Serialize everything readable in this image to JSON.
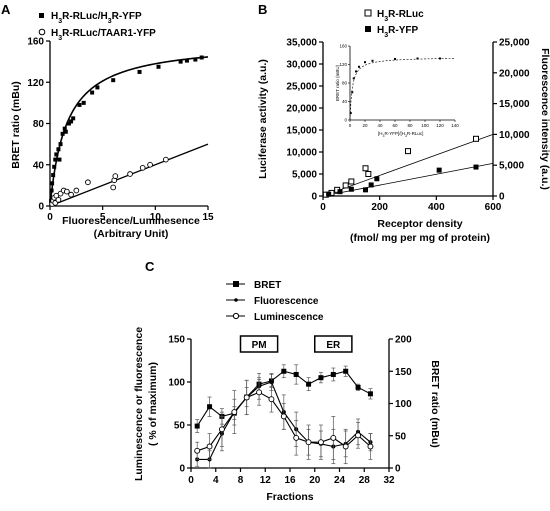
{
  "chart_data": [
    {
      "panel": "A",
      "type": "scatter",
      "xlabel": "Fluorescence/Luminesence",
      "xlabel_sub": "(Arbitrary Unit)",
      "ylabel": "BRET ratio (mBu)",
      "xlim": [
        0,
        15
      ],
      "ylim": [
        0,
        160
      ],
      "xticks": [
        0,
        5,
        10,
        15
      ],
      "yticks": [
        0,
        40,
        80,
        120,
        160
      ],
      "legend_position": "top",
      "series": [
        {
          "name": "H3R-RLuc/H3R-YFP",
          "marker": "filled-square",
          "points": [
            [
              0.1,
              5
            ],
            [
              0.15,
              15
            ],
            [
              0.2,
              22
            ],
            [
              0.3,
              30
            ],
            [
              0.4,
              38
            ],
            [
              0.5,
              45
            ],
            [
              0.6,
              50
            ],
            [
              0.8,
              55
            ],
            [
              0.9,
              45
            ],
            [
              1.0,
              60
            ],
            [
              1.2,
              70
            ],
            [
              1.4,
              75
            ],
            [
              1.5,
              72
            ],
            [
              1.8,
              80
            ],
            [
              2.0,
              82
            ],
            [
              2.2,
              85
            ],
            [
              2.8,
              98
            ],
            [
              3.2,
              100
            ],
            [
              4.0,
              110
            ],
            [
              4.5,
              115
            ],
            [
              6.0,
              122
            ],
            [
              8.5,
              130
            ],
            [
              10.3,
              135
            ],
            [
              12.4,
              140
            ],
            [
              13.0,
              141
            ],
            [
              13.8,
              142
            ],
            [
              14.4,
              144
            ]
          ],
          "fit": {
            "type": "hyperbolic",
            "bmax": 160,
            "k50": 1.6
          }
        },
        {
          "name": "H3R-RLuc/TAAR1-YFP",
          "marker": "open-circle",
          "points": [
            [
              0.2,
              2
            ],
            [
              0.3,
              5
            ],
            [
              0.4,
              8
            ],
            [
              0.5,
              3
            ],
            [
              0.6,
              10
            ],
            [
              0.8,
              6
            ],
            [
              1.0,
              12
            ],
            [
              1.3,
              15
            ],
            [
              1.6,
              14
            ],
            [
              2.0,
              11
            ],
            [
              2.5,
              15
            ],
            [
              3.6,
              23
            ],
            [
              6.0,
              18
            ],
            [
              6.1,
              25
            ],
            [
              6.2,
              29
            ],
            [
              7.6,
              31
            ],
            [
              8.8,
              37
            ],
            [
              9.5,
              40
            ],
            [
              11.0,
              45
            ]
          ],
          "fit": {
            "type": "linear",
            "slope": 4,
            "intercept": 0
          }
        }
      ]
    },
    {
      "panel": "B",
      "type": "scatter",
      "xlabel": "Receptor density",
      "xlabel_sub": "(fmol/ mg per mg of protein)",
      "ylabel": "Luciferase activity (a.u.)",
      "ylabel_right": "Fluorescence intensity (a.u.)",
      "xlim": [
        0,
        600
      ],
      "xticks": [
        0,
        200,
        400,
        600
      ],
      "ylim_left": [
        0,
        35000
      ],
      "yticks_left": [
        "0",
        "5,000",
        "10,000",
        "15,000",
        "20,000",
        "25,000",
        "30,000",
        "35,000"
      ],
      "ylim_right": [
        0,
        25000
      ],
      "yticks_right": [
        "0",
        "5,000",
        "10,000",
        "15,000",
        "20,000",
        "25,000"
      ],
      "legend_position": "top",
      "series": [
        {
          "name": "H3R-RLuc",
          "marker": "open-square",
          "axis": "left",
          "points": [
            [
              10,
              300
            ],
            [
              30,
              700
            ],
            [
              50,
              1400
            ],
            [
              80,
              2400
            ],
            [
              100,
              3300
            ],
            [
              150,
              6300
            ],
            [
              160,
              5000
            ],
            [
              300,
              10200
            ],
            [
              540,
              13000
            ]
          ],
          "fit": {
            "x": [
              0,
              600
            ],
            "y": [
              0,
              14000
            ]
          }
        },
        {
          "name": "H3R-YFP",
          "marker": "filled-square",
          "axis": "right",
          "points": [
            [
              20,
              300
            ],
            [
              60,
              700
            ],
            [
              100,
              1100
            ],
            [
              150,
              1000
            ],
            [
              170,
              1800
            ],
            [
              190,
              2800
            ],
            [
              410,
              4200
            ],
            [
              540,
              4700
            ]
          ],
          "fit": {
            "x": [
              0,
              600
            ],
            "y": [
              0,
              5300
            ]
          }
        }
      ],
      "inset": {
        "xlabel": "[H3R-YFP]/[H3R-RLuc]",
        "ylabel": "BRET ratio (mBU)",
        "xlim": [
          0,
          140
        ],
        "ylim": [
          0,
          160
        ],
        "xticks": [
          0,
          20,
          40,
          60,
          80,
          100,
          120,
          140
        ],
        "yticks": [
          0,
          40,
          80,
          120,
          160
        ],
        "points": [
          [
            1,
            15
          ],
          [
            3,
            60
          ],
          [
            5,
            90
          ],
          [
            8,
            105
          ],
          [
            12,
            115
          ],
          [
            20,
            125
          ],
          [
            30,
            128
          ],
          [
            60,
            132
          ],
          [
            90,
            133
          ],
          [
            120,
            133
          ]
        ],
        "fit": {
          "type": "hyperbolic",
          "bmax": 136,
          "k50": 3
        }
      }
    },
    {
      "panel": "C",
      "type": "line",
      "xlabel": "Fractions",
      "ylabel": "Luminescence or fluorescence",
      "ylabel_sub": "( % of maximum)",
      "ylabel_right": "BRET ratio (mBu)",
      "xlim": [
        0,
        32
      ],
      "xticks": [
        0,
        4,
        8,
        12,
        16,
        20,
        24,
        28,
        32
      ],
      "ylim_left": [
        0,
        150
      ],
      "yticks_left": [
        0,
        50,
        100,
        150
      ],
      "ylim_right": [
        0,
        200
      ],
      "yticks_right": [
        0,
        50,
        100,
        150,
        200
      ],
      "regions": [
        {
          "label": "PM",
          "x": [
            8,
            14
          ]
        },
        {
          "label": "ER",
          "x": [
            20,
            26
          ]
        }
      ],
      "legend_position": "top",
      "x": [
        1,
        3,
        5,
        7,
        9,
        11,
        13,
        15,
        17,
        19,
        21,
        23,
        25,
        27,
        29
      ],
      "series": [
        {
          "name": "BRET",
          "marker": "filled-square",
          "axis": "right",
          "values": [
            65,
            95,
            80,
            85,
            110,
            130,
            135,
            150,
            145,
            130,
            140,
            145,
            150,
            125,
            115
          ],
          "errors": [
            10,
            15,
            12,
            10,
            15,
            10,
            10,
            10,
            15,
            10,
            8,
            10,
            8,
            5,
            8
          ]
        },
        {
          "name": "Fluorescence",
          "marker": "small-dot",
          "axis": "left",
          "values": [
            10,
            10,
            40,
            65,
            82,
            95,
            100,
            65,
            45,
            30,
            28,
            25,
            28,
            42,
            30
          ],
          "errors": [
            8,
            10,
            20,
            25,
            20,
            15,
            10,
            20,
            20,
            15,
            15,
            20,
            15,
            15,
            10
          ]
        },
        {
          "name": "Luminescence",
          "marker": "open-circle",
          "axis": "left",
          "values": [
            20,
            25,
            45,
            65,
            82,
            88,
            80,
            60,
            35,
            30,
            30,
            35,
            25,
            38,
            25
          ],
          "errors": [
            10,
            15,
            20,
            15,
            20,
            15,
            15,
            15,
            20,
            20,
            20,
            25,
            20,
            15,
            15
          ]
        }
      ]
    }
  ],
  "figure": {
    "panel_a_letter": "A",
    "panel_b_letter": "B",
    "panel_c_letter": "C",
    "inset_subscript_3": "3"
  }
}
